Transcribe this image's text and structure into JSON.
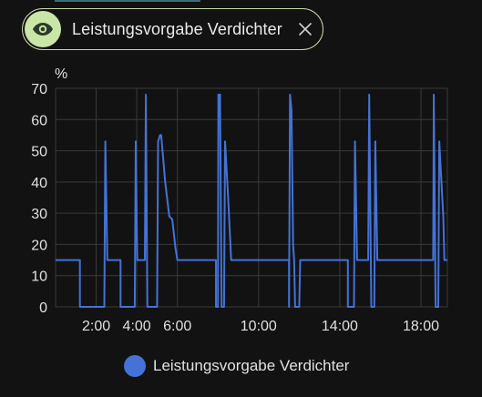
{
  "filter_chip": {
    "label": "Leistungsvorgabe Verdichter",
    "icon": "eye-icon",
    "close_icon": "close-icon"
  },
  "colors": {
    "background": "#121212",
    "series": "#4472d6",
    "grid": "#3a3a3a",
    "chip_border": "#c7d8a8",
    "chip_icon_bg": "#c9e6a6"
  },
  "chart_data": {
    "type": "line",
    "unit_label": "%",
    "ylim": [
      0,
      70
    ],
    "y_ticks": [
      0,
      10,
      20,
      30,
      40,
      50,
      60,
      70
    ],
    "x_range_hours": [
      0,
      19.3
    ],
    "x_ticks": [
      {
        "value": 2,
        "label": "2:00"
      },
      {
        "value": 4,
        "label": "4:00"
      },
      {
        "value": 6,
        "label": "6:00"
      },
      {
        "value": 10,
        "label": "10:00"
      },
      {
        "value": 14,
        "label": "14:00"
      },
      {
        "value": 18,
        "label": "18:00"
      }
    ],
    "grid": true,
    "legend_position": "bottom",
    "series": [
      {
        "name": "Leistungsvorgabe Verdichter",
        "points": [
          [
            0.0,
            15
          ],
          [
            1.2,
            15
          ],
          [
            1.2,
            0
          ],
          [
            2.4,
            0
          ],
          [
            2.45,
            53
          ],
          [
            2.55,
            15
          ],
          [
            3.2,
            15
          ],
          [
            3.2,
            0
          ],
          [
            3.9,
            0
          ],
          [
            3.95,
            53
          ],
          [
            4.02,
            15
          ],
          [
            4.4,
            15
          ],
          [
            4.45,
            68
          ],
          [
            4.52,
            0
          ],
          [
            5.0,
            0
          ],
          [
            5.05,
            53
          ],
          [
            5.15,
            55
          ],
          [
            5.2,
            55
          ],
          [
            5.4,
            40
          ],
          [
            5.6,
            29
          ],
          [
            5.75,
            28
          ],
          [
            5.9,
            19
          ],
          [
            6.0,
            15
          ],
          [
            7.9,
            15
          ],
          [
            7.9,
            0
          ],
          [
            8.0,
            0
          ],
          [
            8.02,
            68
          ],
          [
            8.1,
            68
          ],
          [
            8.18,
            0
          ],
          [
            8.3,
            0
          ],
          [
            8.35,
            53
          ],
          [
            8.5,
            35
          ],
          [
            8.65,
            15
          ],
          [
            11.5,
            15
          ],
          [
            11.5,
            0
          ],
          [
            11.55,
            68
          ],
          [
            11.62,
            63
          ],
          [
            11.7,
            20
          ],
          [
            11.75,
            15
          ],
          [
            11.8,
            0
          ],
          [
            12.0,
            0
          ],
          [
            12.05,
            15
          ],
          [
            14.4,
            15
          ],
          [
            14.4,
            0
          ],
          [
            14.7,
            0
          ],
          [
            14.75,
            53
          ],
          [
            14.85,
            15
          ],
          [
            15.4,
            15
          ],
          [
            15.45,
            68
          ],
          [
            15.55,
            0
          ],
          [
            15.7,
            0
          ],
          [
            15.75,
            53
          ],
          [
            15.85,
            15
          ],
          [
            18.6,
            15
          ],
          [
            18.63,
            68
          ],
          [
            18.72,
            0
          ],
          [
            18.85,
            0
          ],
          [
            18.9,
            53
          ],
          [
            19.1,
            29
          ],
          [
            19.15,
            15
          ],
          [
            19.3,
            15
          ]
        ]
      }
    ]
  }
}
